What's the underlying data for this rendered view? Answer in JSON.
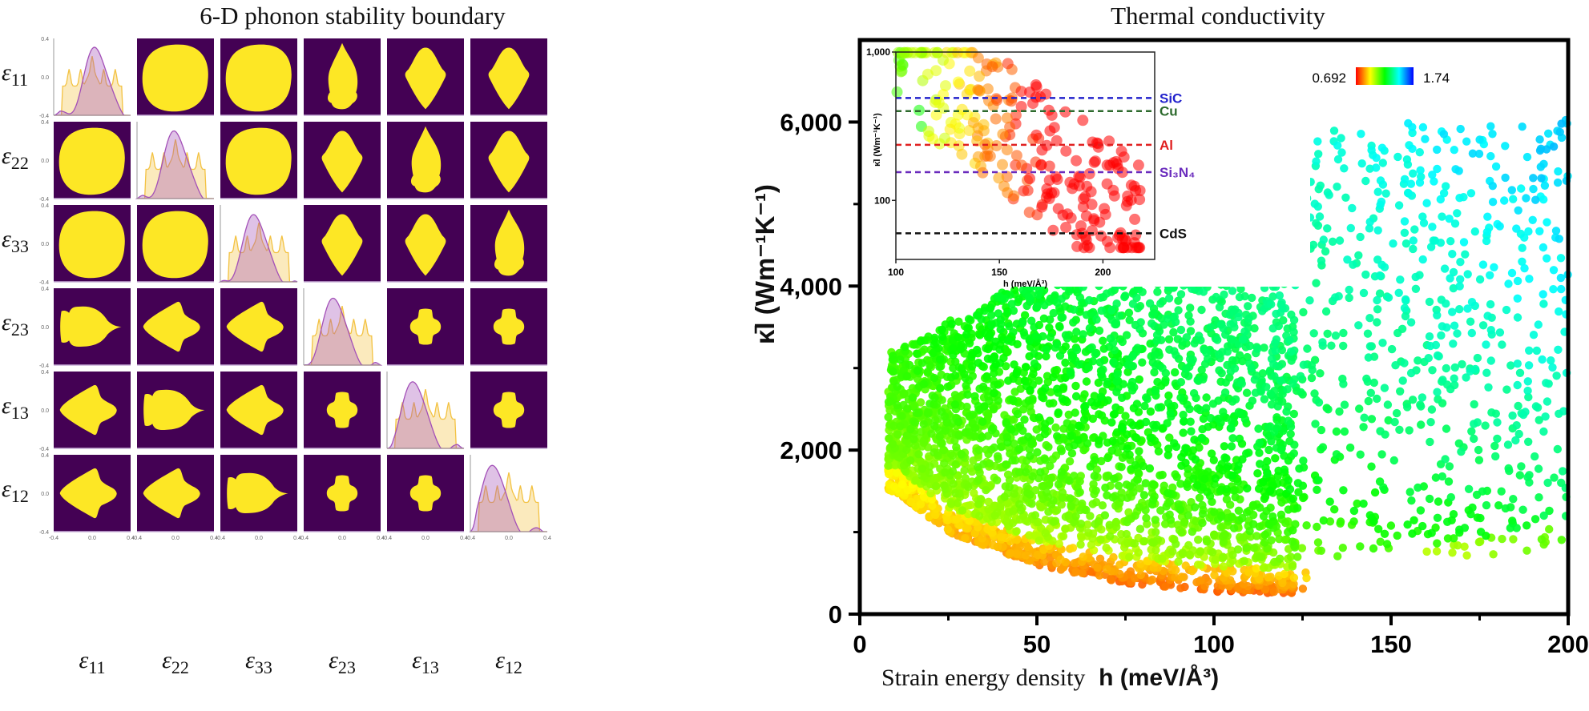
{
  "left_title": "6-D phonon stability boundary",
  "right_title": "Thermal conductivity",
  "chart_data": [
    {
      "type": "heatmap",
      "title": "6-D phonon stability boundary",
      "description": "6x6 pair plot of strain components; diagonal = density distributions (two overlaid series), off-diagonal = stable region (yellow) vs unstable (purple)",
      "variables": [
        "ε11",
        "ε22",
        "ε33",
        "ε23",
        "ε13",
        "ε12"
      ],
      "variable_base": "ε",
      "variable_subs": [
        "11",
        "22",
        "33",
        "23",
        "13",
        "12"
      ],
      "axis_range": [
        -0.4,
        0.4
      ],
      "tick_labels": [
        "-0.4",
        "0.0",
        "0.4"
      ],
      "colors": {
        "stable": "#fde725",
        "unstable": "#440154",
        "density_a": "#f3c242",
        "density_b": "#a350b8",
        "overlap": "#e0aeb0"
      },
      "region_shapes": [
        [
          "density",
          "ellipse",
          "ellipse",
          "arrowhead-notched",
          "kite",
          "kite"
        ],
        [
          "ellipse",
          "density",
          "ellipse",
          "kite",
          "arrowhead-notched",
          "kite"
        ],
        [
          "ellipse",
          "ellipse",
          "density",
          "kite",
          "kite",
          "arrowhead-notched"
        ],
        [
          "fish-right",
          "diamond-skew",
          "diamond-skew",
          "density",
          "cross-blob",
          "cross-blob"
        ],
        [
          "diamond-skew",
          "fish-right",
          "diamond-skew",
          "cross-blob",
          "density",
          "cross-blob"
        ],
        [
          "diamond-skew",
          "diamond-skew",
          "fish-right",
          "cross-blob",
          "cross-blob",
          "density"
        ]
      ]
    },
    {
      "type": "scatter",
      "title": "Thermal conductivity",
      "xlabel_text": "Strain energy density",
      "xlabel_bold": "h (meV/Å³)",
      "ylabel": "κ̄l (Wm⁻¹K⁻¹)",
      "xlim": [
        0,
        200
      ],
      "ylim": [
        0,
        7000
      ],
      "x_ticks": [
        0,
        50,
        100,
        150,
        200
      ],
      "x_tick_labels": [
        "0",
        "50",
        "100",
        "150",
        "200"
      ],
      "y_ticks": [
        0,
        2000,
        4000,
        6000
      ],
      "y_tick_labels": [
        "0",
        "2,000",
        "4,000",
        "6,000"
      ],
      "colorbar": {
        "min_label": "0.692",
        "max_label": "1.74",
        "min": 0.692,
        "max": 1.74,
        "colors": [
          "#ff0000",
          "#ffff00",
          "#00ff00",
          "#00ffff",
          "#0000ff"
        ],
        "position": "top-right"
      },
      "point_distribution": {
        "description": "Dense cloud of several thousand points; lower boundary curve κ≈ decreasing from ~1,500 at h≈10 to ~250 at h≈127; red/orange near lower boundary, green in bulk, cyan/blue at high h and high κ",
        "lower_boundary": [
          [
            10,
            1500
          ],
          [
            25,
            1000
          ],
          [
            50,
            600
          ],
          [
            75,
            380
          ],
          [
            100,
            270
          ],
          [
            127,
            250
          ]
        ],
        "upper_extent": [
          [
            10,
            3200
          ],
          [
            50,
            4200
          ],
          [
            100,
            5800
          ],
          [
            150,
            6000
          ],
          [
            200,
            6100
          ]
        ]
      },
      "inset": {
        "type": "scatter",
        "yscale": "log",
        "xlim": [
          100,
          225
        ],
        "ylim": [
          40,
          1000
        ],
        "x_ticks": [
          100,
          150,
          200
        ],
        "x_tick_labels": [
          "100",
          "150",
          "200"
        ],
        "y_tick_labels": [
          "1,000",
          "100"
        ],
        "xlabel": "h (meV/Å³)",
        "ylabel": "κ̄l (Wm⁻¹K⁻¹)",
        "reference_lines": [
          {
            "label": "SiC",
            "value": 490,
            "color": "#2222cc"
          },
          {
            "label": "Cu",
            "value": 400,
            "color": "#2e6b2e"
          },
          {
            "label": "Al",
            "value": 237,
            "color": "#e02020"
          },
          {
            "label": "Si₃N₄",
            "value": 155,
            "color": "#6a2bbd"
          },
          {
            "label": "CdS",
            "value": 60,
            "color": "#111111"
          }
        ]
      }
    }
  ]
}
